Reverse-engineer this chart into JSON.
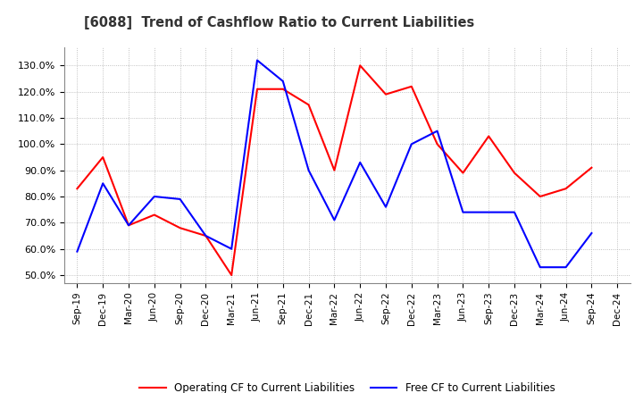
{
  "title": "[6088]  Trend of Cashflow Ratio to Current Liabilities",
  "x_labels": [
    "Sep-19",
    "Dec-19",
    "Mar-20",
    "Jun-20",
    "Sep-20",
    "Dec-20",
    "Mar-21",
    "Jun-21",
    "Sep-21",
    "Dec-21",
    "Mar-22",
    "Jun-22",
    "Sep-22",
    "Dec-22",
    "Mar-23",
    "Jun-23",
    "Sep-23",
    "Dec-23",
    "Mar-24",
    "Jun-24",
    "Sep-24",
    "Dec-24"
  ],
  "operating_cf": [
    0.83,
    0.95,
    0.69,
    0.73,
    0.68,
    0.65,
    0.5,
    1.21,
    1.21,
    1.15,
    0.9,
    1.3,
    1.19,
    1.22,
    1.0,
    0.89,
    1.03,
    0.89,
    0.8,
    0.83,
    0.91,
    null
  ],
  "free_cf": [
    0.59,
    0.85,
    0.69,
    0.8,
    0.79,
    0.65,
    0.6,
    1.32,
    1.24,
    0.9,
    0.71,
    0.93,
    0.76,
    1.0,
    1.05,
    0.74,
    0.74,
    0.74,
    0.53,
    0.53,
    0.66,
    null
  ],
  "operating_color": "#ff0000",
  "free_color": "#0000ff",
  "ylim": [
    0.47,
    1.37
  ],
  "yticks": [
    0.5,
    0.6,
    0.7,
    0.8,
    0.9,
    1.0,
    1.1,
    1.2,
    1.3
  ],
  "legend_operating": "Operating CF to Current Liabilities",
  "legend_free": "Free CF to Current Liabilities",
  "background_color": "#ffffff",
  "grid_color": "#b0b0b0"
}
